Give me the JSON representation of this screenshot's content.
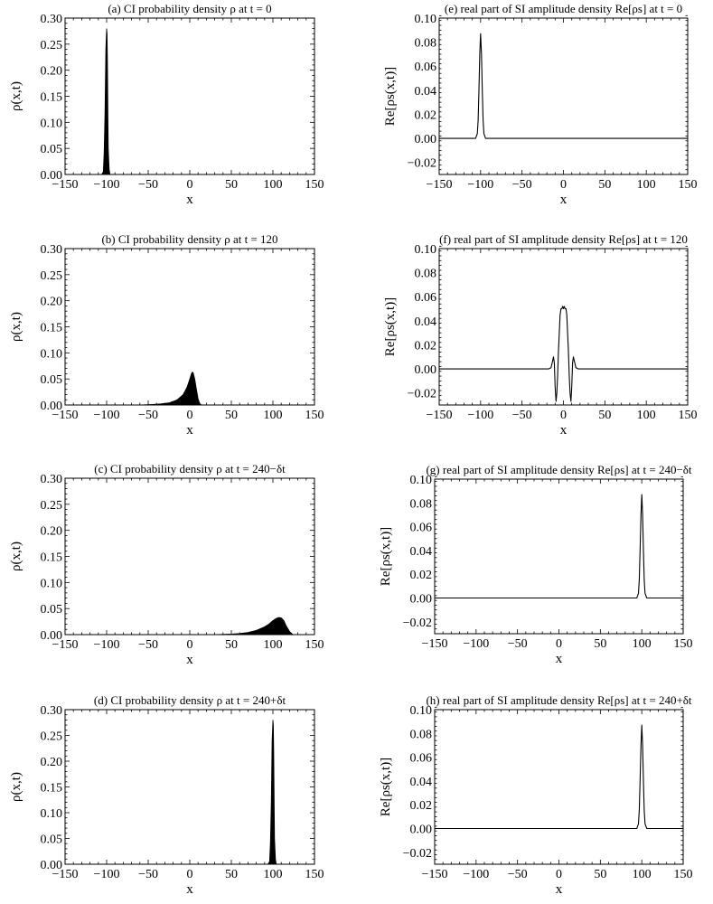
{
  "chart_data": [
    {
      "id": "a",
      "type": "area",
      "title": "(a) CI probability density ρ at t = 0",
      "xlabel": "x",
      "ylabel": "ρ(x,t)",
      "xlim": [
        -150,
        150
      ],
      "ylim": [
        0,
        0.3
      ],
      "xticks": [
        -150,
        -100,
        -50,
        0,
        50,
        100,
        150
      ],
      "yticks": [
        0.0,
        0.05,
        0.1,
        0.15,
        0.2,
        0.25,
        0.3
      ],
      "xtick_labels": [
        "−150",
        "−100",
        "−50",
        "0",
        "50",
        "100",
        "150"
      ],
      "ytick_labels": [
        "0.00",
        "0.05",
        "0.10",
        "0.15",
        "0.20",
        "0.25",
        "0.30"
      ],
      "grid": false,
      "x": [
        -106,
        -104,
        -103,
        -102,
        -101,
        -100,
        -99.5,
        -99,
        -98.5,
        -98,
        -97,
        -96
      ],
      "y": [
        0,
        0.005,
        0.04,
        0.12,
        0.24,
        0.28,
        0.27,
        0.22,
        0.12,
        0.05,
        0.01,
        0
      ]
    },
    {
      "id": "b",
      "type": "area",
      "title": "(b) CI probability density ρ at t = 120",
      "xlabel": "x",
      "ylabel": "ρ(x,t)",
      "xlim": [
        -150,
        150
      ],
      "ylim": [
        0,
        0.3
      ],
      "xticks": [
        -150,
        -100,
        -50,
        0,
        50,
        100,
        150
      ],
      "yticks": [
        0.0,
        0.05,
        0.1,
        0.15,
        0.2,
        0.25,
        0.3
      ],
      "xtick_labels": [
        "−150",
        "−100",
        "−50",
        "0",
        "50",
        "100",
        "150"
      ],
      "ytick_labels": [
        "0.00",
        "0.05",
        "0.10",
        "0.15",
        "0.20",
        "0.25",
        "0.30"
      ],
      "grid": false,
      "x": [
        -60,
        -45,
        -35,
        -25,
        -15,
        -8,
        -3,
        0,
        2,
        3,
        4,
        6,
        8,
        10,
        12,
        14
      ],
      "y": [
        0,
        0.001,
        0.002,
        0.004,
        0.01,
        0.02,
        0.035,
        0.05,
        0.06,
        0.063,
        0.062,
        0.05,
        0.03,
        0.012,
        0.003,
        0
      ]
    },
    {
      "id": "c",
      "type": "area",
      "title": "(c) CI probability density ρ at t = 240−δt",
      "xlabel": "x",
      "ylabel": "ρ(x,t)",
      "xlim": [
        -150,
        150
      ],
      "ylim": [
        0,
        0.3
      ],
      "xticks": [
        -150,
        -100,
        -50,
        0,
        50,
        100,
        150
      ],
      "yticks": [
        0.0,
        0.05,
        0.1,
        0.15,
        0.2,
        0.25,
        0.3
      ],
      "xtick_labels": [
        "−150",
        "−100",
        "−50",
        "0",
        "50",
        "100",
        "150"
      ],
      "ytick_labels": [
        "0.00",
        "0.05",
        "0.10",
        "0.15",
        "0.20",
        "0.25",
        "0.30"
      ],
      "grid": false,
      "x": [
        30,
        50,
        60,
        70,
        80,
        90,
        95,
        100,
        104,
        107,
        110,
        113,
        116,
        120,
        124
      ],
      "y": [
        0,
        0.001,
        0.002,
        0.004,
        0.008,
        0.015,
        0.02,
        0.027,
        0.031,
        0.033,
        0.032,
        0.027,
        0.017,
        0.006,
        0
      ]
    },
    {
      "id": "d",
      "type": "area",
      "title": "(d) CI probability density ρ at t = 240+δt",
      "xlabel": "x",
      "ylabel": "ρ(x,t)",
      "xlim": [
        -150,
        150
      ],
      "ylim": [
        0,
        0.3
      ],
      "xticks": [
        -150,
        -100,
        -50,
        0,
        50,
        100,
        150
      ],
      "yticks": [
        0.0,
        0.05,
        0.1,
        0.15,
        0.2,
        0.25,
        0.3
      ],
      "xtick_labels": [
        "−150",
        "−100",
        "−50",
        "0",
        "50",
        "100",
        "150"
      ],
      "ytick_labels": [
        "0.00",
        "0.05",
        "0.10",
        "0.15",
        "0.20",
        "0.25",
        "0.30"
      ],
      "grid": false,
      "x": [
        94,
        96,
        97,
        98,
        99,
        100,
        100.5,
        101,
        101.5,
        102,
        103,
        104
      ],
      "y": [
        0,
        0.005,
        0.04,
        0.12,
        0.24,
        0.28,
        0.27,
        0.22,
        0.12,
        0.05,
        0.01,
        0
      ]
    },
    {
      "id": "e",
      "type": "line",
      "title": "(e) real part of SI amplitude density Re[ρs] at t = 0",
      "xlabel": "x",
      "ylabel": "Re[ρs(x,t)]",
      "xlim": [
        -150,
        150
      ],
      "ylim": [
        -0.03,
        0.1
      ],
      "xticks": [
        -150,
        -100,
        -50,
        0,
        50,
        100,
        150
      ],
      "yticks": [
        -0.02,
        0.0,
        0.02,
        0.04,
        0.06,
        0.08,
        0.1
      ],
      "xtick_labels": [
        "−150",
        "−100",
        "−50",
        "0",
        "50",
        "100",
        "150"
      ],
      "ytick_labels": [
        "−0.02",
        "0.00",
        "0.02",
        "0.04",
        "0.06",
        "0.08",
        "0.10"
      ],
      "grid": false,
      "x": [
        -150,
        -106,
        -104,
        -103,
        -102,
        -101,
        -100,
        -99,
        -98,
        -97,
        -96,
        -94,
        150
      ],
      "y": [
        0,
        0,
        0.004,
        0.015,
        0.04,
        0.07,
        0.087,
        0.07,
        0.04,
        0.015,
        0.004,
        0,
        0
      ]
    },
    {
      "id": "f",
      "type": "line",
      "title": "(f) real part of SI amplitude density Re[ρs] at t = 120",
      "xlabel": "x",
      "ylabel": "Re[ρs(x,t)]",
      "xlim": [
        -150,
        150
      ],
      "ylim": [
        -0.03,
        0.1
      ],
      "xticks": [
        -150,
        -100,
        -50,
        0,
        50,
        100,
        150
      ],
      "yticks": [
        -0.02,
        0.0,
        0.02,
        0.04,
        0.06,
        0.08,
        0.1
      ],
      "xtick_labels": [
        "−150",
        "−100",
        "−50",
        "0",
        "50",
        "100",
        "150"
      ],
      "ytick_labels": [
        "−0.02",
        "0.00",
        "0.02",
        "0.04",
        "0.06",
        "0.08",
        "0.10"
      ],
      "grid": false,
      "x": [
        -150,
        -18,
        -15,
        -13,
        -12,
        -11,
        -10,
        -9,
        -8,
        -7,
        -6,
        -5,
        -4,
        -3,
        -2,
        -1,
        0,
        1,
        2,
        3,
        4,
        5,
        6,
        7,
        8,
        9,
        10,
        11,
        12,
        13,
        15,
        18,
        150
      ],
      "y": [
        0,
        0,
        0.001,
        0.007,
        0.01,
        0.005,
        -0.015,
        -0.027,
        -0.02,
        -0.005,
        0.015,
        0.03,
        0.045,
        0.05,
        0.05,
        0.052,
        0.05,
        0.052,
        0.05,
        0.05,
        0.045,
        0.03,
        0.015,
        -0.005,
        -0.02,
        -0.027,
        -0.015,
        0.005,
        0.01,
        0.007,
        0.001,
        0,
        0
      ]
    },
    {
      "id": "g",
      "type": "line",
      "title": "(g) real part of SI amplitude density Re[ρs] at t = 240−δt",
      "xlabel": "x",
      "ylabel": "Re[ρs(x,t)]",
      "xlim": [
        -150,
        150
      ],
      "ylim": [
        -0.03,
        0.1
      ],
      "xticks": [
        -150,
        -100,
        -50,
        0,
        50,
        100,
        150
      ],
      "yticks": [
        -0.02,
        0.0,
        0.02,
        0.04,
        0.06,
        0.08,
        0.1
      ],
      "xtick_labels": [
        "−150",
        "−100",
        "−50",
        "0",
        "50",
        "100",
        "150"
      ],
      "ytick_labels": [
        "−0.02",
        "0.00",
        "0.02",
        "0.04",
        "0.06",
        "0.08",
        "0.10"
      ],
      "grid": false,
      "x": [
        -150,
        94,
        96,
        97,
        98,
        99,
        100,
        101,
        102,
        103,
        104,
        106,
        150
      ],
      "y": [
        0,
        0,
        0.004,
        0.015,
        0.04,
        0.07,
        0.087,
        0.07,
        0.04,
        0.015,
        0.004,
        0,
        0
      ]
    },
    {
      "id": "h",
      "type": "line",
      "title": "(h) real part of SI amplitude density Re[ρs] at t = 240+δt",
      "xlabel": "x",
      "ylabel": "Re[ρs(x,t)]",
      "xlim": [
        -150,
        150
      ],
      "ylim": [
        -0.03,
        0.1
      ],
      "xticks": [
        -150,
        -100,
        -50,
        0,
        50,
        100,
        150
      ],
      "yticks": [
        -0.02,
        0.0,
        0.02,
        0.04,
        0.06,
        0.08,
        0.1
      ],
      "xtick_labels": [
        "−150",
        "−100",
        "−50",
        "0",
        "50",
        "100",
        "150"
      ],
      "ytick_labels": [
        "−0.02",
        "0.00",
        "0.02",
        "0.04",
        "0.06",
        "0.08",
        "0.10"
      ],
      "grid": false,
      "x": [
        -150,
        94,
        96,
        97,
        98,
        99,
        100,
        101,
        102,
        103,
        104,
        106,
        150
      ],
      "y": [
        0,
        0,
        0.004,
        0.015,
        0.04,
        0.07,
        0.087,
        0.07,
        0.04,
        0.015,
        0.004,
        0,
        0
      ]
    }
  ]
}
